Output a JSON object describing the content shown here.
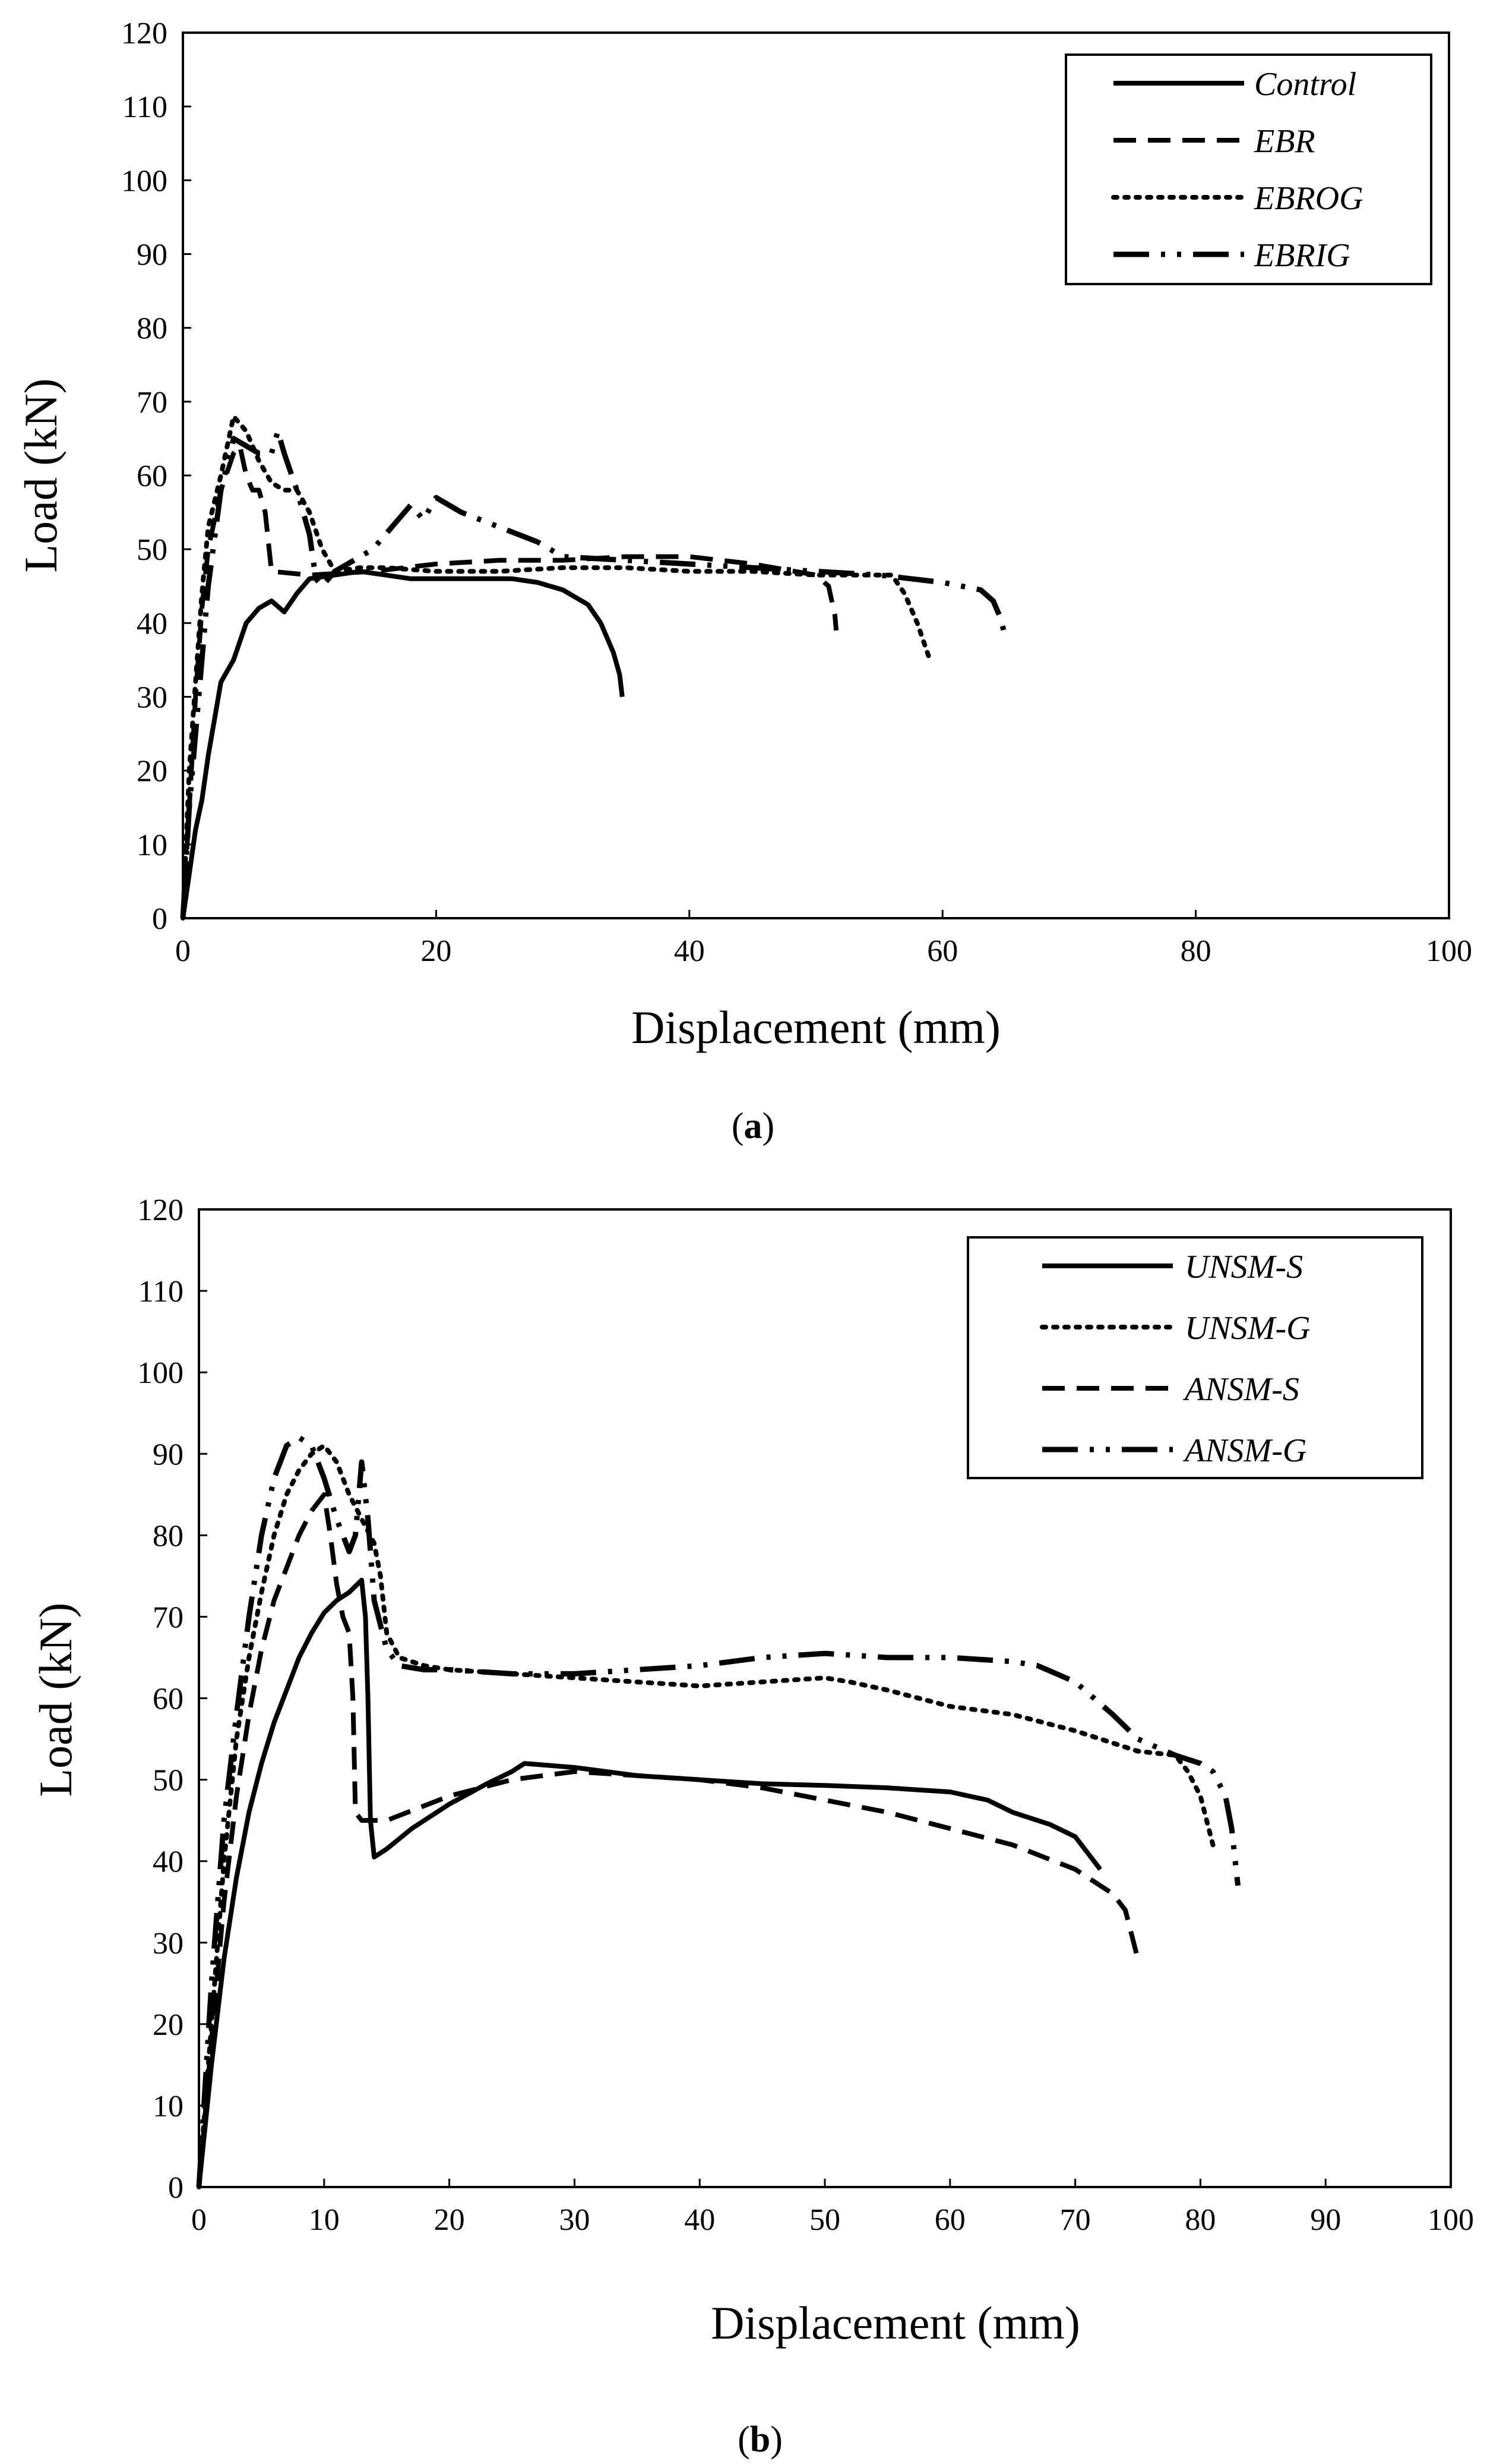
{
  "chart_data": [
    {
      "type": "line",
      "caption": "(a)",
      "caption_letter": "a",
      "xlabel": "Displacement (mm)",
      "ylabel": "Load (kN)",
      "xlim": [
        0,
        100
      ],
      "ylim": [
        0,
        120
      ],
      "xticks": [
        0,
        20,
        40,
        60,
        80,
        100
      ],
      "yticks": [
        0,
        10,
        20,
        30,
        40,
        50,
        60,
        70,
        80,
        90,
        100,
        110,
        120
      ],
      "grid": false,
      "legend_position": "top-right",
      "series": [
        {
          "name": "Control",
          "style": "solid",
          "x": [
            0,
            0.5,
            1,
            1.5,
            2,
            2.5,
            3,
            4,
            5,
            6,
            7,
            8,
            9,
            10,
            12,
            14,
            16,
            18,
            20,
            22,
            24,
            26,
            28,
            30,
            32,
            33,
            34,
            34.5,
            34.7
          ],
          "y": [
            0,
            6,
            12,
            16,
            22,
            27,
            32,
            35,
            40,
            42,
            43,
            41.5,
            44,
            46,
            46.5,
            47,
            46.5,
            46,
            46,
            46,
            46,
            46,
            45.5,
            44.5,
            42.5,
            40,
            36,
            33,
            30
          ]
        },
        {
          "name": "EBR",
          "style": "dashed",
          "x": [
            0,
            0.5,
            1,
            1.5,
            2,
            3,
            4,
            4.5,
            5,
            5.5,
            6,
            6.5,
            7,
            10,
            15,
            20,
            25,
            30,
            35,
            40,
            45,
            50,
            51,
            51.5,
            51.6
          ],
          "y": [
            0,
            15,
            30,
            42,
            50,
            58,
            63,
            64,
            60,
            58,
            58,
            55,
            47,
            46.5,
            47,
            48,
            48.5,
            48.5,
            49,
            49,
            48,
            46.5,
            45,
            41,
            39
          ]
        },
        {
          "name": "EBROG",
          "style": "dotted",
          "x": [
            0,
            0.5,
            1,
            1.5,
            2,
            3,
            4,
            5,
            6,
            7,
            8,
            9,
            10,
            11,
            12,
            14,
            16,
            20,
            25,
            30,
            35,
            40,
            45,
            50,
            52,
            55,
            56,
            57,
            58,
            59
          ],
          "y": [
            0,
            20,
            32,
            44,
            53,
            60,
            68,
            66,
            62,
            59,
            58,
            58,
            55,
            50,
            47,
            47.5,
            47.5,
            47,
            47,
            47.5,
            47.5,
            47,
            47,
            46.5,
            46.5,
            46.5,
            46.5,
            44,
            40,
            35
          ]
        },
        {
          "name": "EBRIG",
          "style": "dashdotdot",
          "x": [
            0,
            0.5,
            1,
            1.5,
            2,
            3,
            4,
            5,
            6,
            7,
            7.5,
            8,
            9,
            10,
            10.5,
            11,
            12,
            13,
            15,
            17,
            18,
            19,
            20,
            21,
            22,
            25,
            28,
            30,
            35,
            40,
            45,
            50,
            55,
            60,
            63,
            64,
            64.5,
            65
          ],
          "y": [
            0,
            15,
            25,
            35,
            45,
            58,
            65,
            64,
            63,
            63,
            66,
            63,
            58,
            52,
            46,
            45,
            47,
            48,
            50,
            54,
            56,
            54,
            57,
            56,
            55,
            53,
            51,
            49,
            48.5,
            48,
            47.5,
            47,
            46.5,
            45.5,
            44.5,
            43,
            41,
            38
          ]
        }
      ]
    },
    {
      "type": "line",
      "caption": "(b)",
      "caption_letter": "b",
      "xlabel": "Displacement (mm)",
      "ylabel": "Load (kN)",
      "xlim": [
        0,
        100
      ],
      "ylim": [
        0,
        120
      ],
      "xticks": [
        0,
        10,
        20,
        30,
        40,
        50,
        60,
        70,
        80,
        90,
        100
      ],
      "yticks": [
        0,
        10,
        20,
        30,
        40,
        50,
        60,
        70,
        80,
        90,
        100,
        110,
        120
      ],
      "grid": false,
      "legend_position": "top-right",
      "series": [
        {
          "name": "UNSM-S",
          "style": "solid",
          "x": [
            0,
            1,
            2,
            3,
            4,
            5,
            6,
            7,
            8,
            9,
            10,
            11,
            12,
            13,
            13.3,
            13.5,
            13.7,
            14,
            15,
            17,
            20,
            23,
            25,
            26,
            30,
            35,
            40,
            45,
            50,
            55,
            60,
            63,
            65,
            68,
            70,
            71,
            72
          ],
          "y": [
            0,
            15,
            28,
            38,
            46,
            52,
            57,
            61,
            65,
            68,
            70.5,
            72,
            73,
            74.5,
            70,
            60,
            45,
            40.5,
            41.5,
            44,
            47,
            49.5,
            51,
            52,
            51.5,
            50.5,
            50,
            49.5,
            49.3,
            49,
            48.5,
            47.5,
            46,
            44.5,
            43,
            41,
            39
          ]
        },
        {
          "name": "UNSM-G",
          "style": "dotted",
          "x": [
            0,
            1,
            2,
            3,
            4,
            5,
            6,
            7,
            8,
            9,
            10,
            11,
            12,
            13,
            14,
            14.5,
            15,
            16,
            18,
            20,
            25,
            30,
            35,
            40,
            45,
            50,
            52,
            55,
            60,
            65,
            70,
            75,
            78,
            79,
            80,
            80.5,
            81
          ],
          "y": [
            0,
            20,
            40,
            55,
            65,
            73,
            80,
            85,
            88,
            90,
            91,
            89,
            85,
            82,
            79,
            75,
            68,
            65,
            64,
            63.5,
            63,
            62.5,
            62,
            61.5,
            62,
            62.5,
            62,
            61,
            59,
            58,
            56,
            53.5,
            53,
            51,
            48,
            45,
            42
          ]
        },
        {
          "name": "ANSM-S",
          "style": "dashed",
          "x": [
            0,
            1,
            2,
            3,
            4,
            5,
            6,
            7,
            8,
            9,
            10,
            10.5,
            11,
            11.5,
            12,
            12.3,
            12.5,
            13,
            15,
            20,
            25,
            30,
            35,
            40,
            45,
            50,
            55,
            60,
            65,
            70,
            72,
            73,
            74,
            74.5,
            75
          ],
          "y": [
            0,
            18,
            35,
            48,
            58,
            66,
            72,
            76,
            80,
            83,
            85,
            80,
            74,
            70,
            68,
            60,
            46,
            45,
            45,
            48,
            50,
            51,
            50.5,
            50,
            49,
            47.5,
            46,
            44,
            42,
            39,
            37,
            36,
            34,
            31,
            28
          ]
        },
        {
          "name": "ANSM-G",
          "style": "dashdotdot",
          "x": [
            0,
            1,
            2,
            3,
            4,
            5,
            6,
            7,
            8,
            9,
            10,
            11,
            12,
            12.5,
            13,
            13.5,
            14,
            15,
            16,
            18,
            20,
            25,
            30,
            35,
            40,
            45,
            50,
            55,
            60,
            65,
            67,
            70,
            73,
            75,
            78,
            80,
            81,
            82,
            82.5,
            83
          ],
          "y": [
            0,
            25,
            45,
            58,
            70,
            80,
            87,
            91,
            92,
            91,
            87,
            82,
            78,
            80,
            89,
            82,
            72,
            66,
            64,
            63.5,
            63.5,
            63,
            63,
            63.5,
            64,
            65,
            65.5,
            65,
            65,
            64.5,
            64,
            62,
            58,
            55,
            53,
            52,
            51,
            48,
            44,
            37
          ]
        }
      ]
    }
  ]
}
